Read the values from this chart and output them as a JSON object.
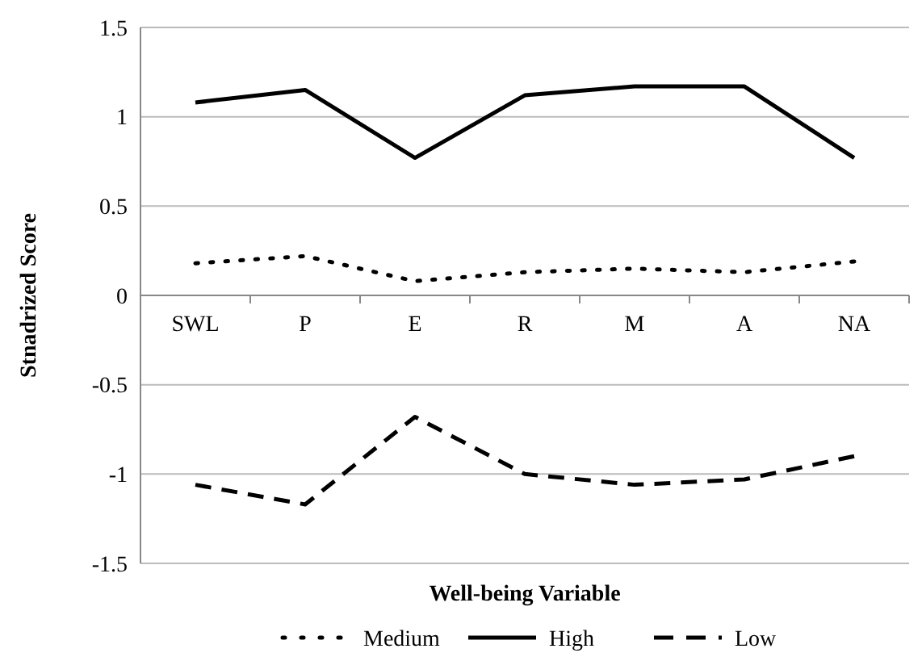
{
  "chart_data": {
    "type": "line",
    "xlabel": "Well-being Variable",
    "ylabel": "Stnadrized Score",
    "categories": [
      "SWL",
      "P",
      "E",
      "R",
      "M",
      "A",
      "NA"
    ],
    "series": [
      {
        "name": "Medium",
        "color": "#000000",
        "line_style": "dotted",
        "values": [
          0.18,
          0.22,
          0.08,
          0.13,
          0.15,
          0.13,
          0.19
        ]
      },
      {
        "name": "High",
        "color": "#000000",
        "line_style": "solid",
        "values": [
          1.08,
          1.15,
          0.77,
          1.12,
          1.17,
          1.17,
          0.77
        ]
      },
      {
        "name": "Low",
        "color": "#000000",
        "line_style": "dashed",
        "values": [
          -1.06,
          -1.17,
          -0.68,
          -1.0,
          -1.06,
          -1.03,
          -0.9
        ]
      }
    ],
    "ylim": [
      -1.5,
      1.5
    ],
    "yticks": [
      1.5,
      1,
      0.5,
      0,
      -0.5,
      -1,
      -1.5
    ],
    "grid": "y",
    "legend": "bottom",
    "marker": "none"
  }
}
